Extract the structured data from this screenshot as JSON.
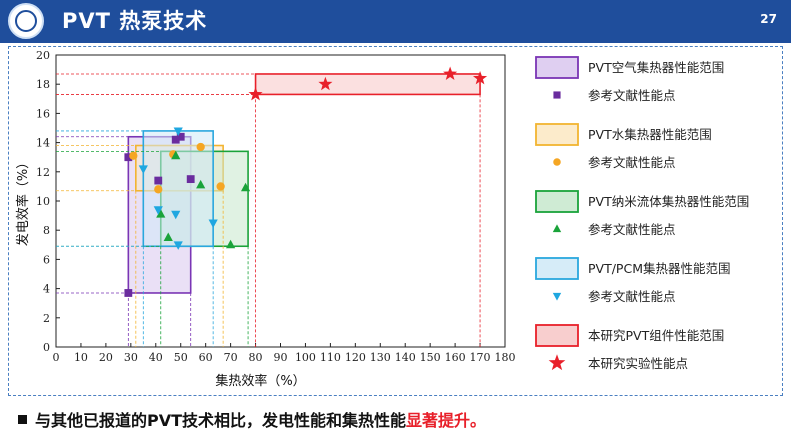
{
  "header": {
    "title": "PVT 热泵技术",
    "page_number": "27"
  },
  "footer": {
    "statement": "与其他已报道的PVT技术相比，发电性能和集热性能",
    "highlight": "显著提升。"
  },
  "chart_data": {
    "type": "scatter",
    "xlabel": "集热效率（%）",
    "ylabel": "发电效率（%）",
    "xlim": [
      0,
      180
    ],
    "ylim": [
      0,
      20
    ],
    "xticks": [
      0,
      10,
      20,
      30,
      40,
      50,
      60,
      70,
      80,
      90,
      100,
      110,
      120,
      130,
      140,
      150,
      160,
      170,
      180
    ],
    "yticks": [
      0,
      2,
      4,
      6,
      8,
      10,
      12,
      14,
      16,
      18,
      20
    ],
    "legend_position": "right",
    "groups": [
      {
        "key": "air",
        "range_label": "PVT空气集热器性能范围",
        "points_label": "参考文献性能点",
        "marker": "square",
        "point_color": "#6a2c9e",
        "box_fill": "#d9c7ee",
        "box_stroke": "#7a35b5",
        "range": {
          "x": [
            29,
            54
          ],
          "y": [
            3.7,
            14.4
          ]
        },
        "points": [
          [
            29,
            3.7
          ],
          [
            29,
            13
          ],
          [
            41,
            11.4
          ],
          [
            48,
            14.2
          ],
          [
            50,
            14.4
          ],
          [
            54,
            11.5
          ]
        ]
      },
      {
        "key": "water",
        "range_label": "PVT水集热器性能范围",
        "points_label": "参考文献性能点",
        "marker": "circle",
        "point_color": "#f5a623",
        "box_fill": "#fbe7c2",
        "box_stroke": "#f2b430",
        "range": {
          "x": [
            32,
            67
          ],
          "y": [
            10.7,
            13.8
          ]
        },
        "points": [
          [
            31,
            13.1
          ],
          [
            41,
            10.8
          ],
          [
            47,
            13.2
          ],
          [
            58,
            13.7
          ],
          [
            66,
            11
          ]
        ]
      },
      {
        "key": "nano",
        "range_label": "PVT纳米流体集热器性能范围",
        "points_label": "参考文献性能点",
        "marker": "triangle-up",
        "point_color": "#1aa33a",
        "box_fill": "#c7e8cc",
        "box_stroke": "#1aa33a",
        "range": {
          "x": [
            42,
            77
          ],
          "y": [
            6.9,
            13.4
          ]
        },
        "points": [
          [
            42,
            9.1
          ],
          [
            45,
            7.5
          ],
          [
            48,
            13.1
          ],
          [
            58,
            11.1
          ],
          [
            70,
            7
          ],
          [
            76,
            10.9
          ]
        ]
      },
      {
        "key": "pcm",
        "range_label": "PVT/PCM集热器性能范围",
        "points_label": "参考文献性能点",
        "marker": "triangle-down",
        "point_color": "#1fa7e0",
        "box_fill": "#cfe9f7",
        "box_stroke": "#2aa7de",
        "range": {
          "x": [
            35,
            63
          ],
          "y": [
            6.9,
            14.8
          ]
        },
        "points": [
          [
            35,
            12.2
          ],
          [
            41,
            9.4
          ],
          [
            48,
            9.1
          ],
          [
            49,
            7
          ],
          [
            49,
            14.8
          ],
          [
            63,
            8.5
          ]
        ]
      },
      {
        "key": "this",
        "range_label": "本研究PVT组件性能范围",
        "points_label": "本研究实验性能点",
        "marker": "star",
        "point_color": "#e8202a",
        "box_fill": "#f7c6c6",
        "box_stroke": "#e8202a",
        "range": {
          "x": [
            80,
            170
          ],
          "y": [
            17.3,
            18.7
          ]
        },
        "points": [
          [
            80,
            17.3
          ],
          [
            108,
            18
          ],
          [
            158,
            18.7
          ],
          [
            170,
            18.4
          ]
        ]
      }
    ]
  }
}
